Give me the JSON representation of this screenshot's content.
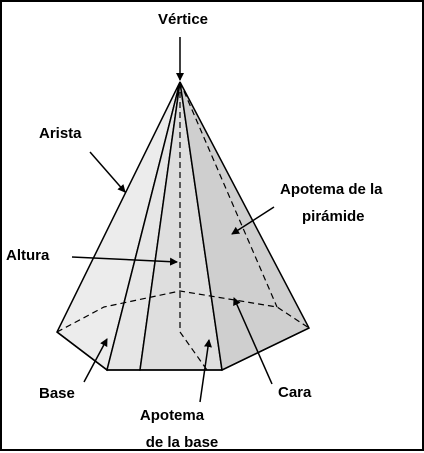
{
  "labels": {
    "vertex": "Vértice",
    "edge": "Arista",
    "height": "Altura",
    "pyramid_apothem_line1": "Apotema de la",
    "pyramid_apothem_line2": "pirámide",
    "base": "Base",
    "face": "Cara",
    "base_apothem_line1": "Apotema",
    "base_apothem_line2": "de la base"
  },
  "colors": {
    "outline": "#000000",
    "face_light": "#ececec",
    "face_mid": "#dedede",
    "face_dark": "#cfcfcf",
    "base": "#f4f4f4"
  }
}
